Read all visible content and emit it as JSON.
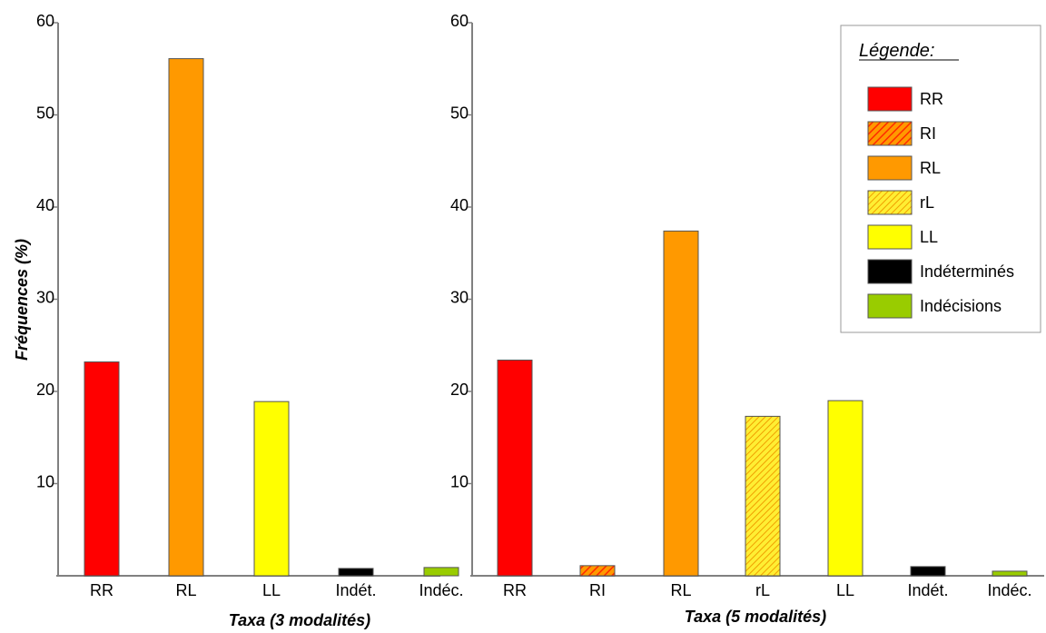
{
  "chart_data": [
    {
      "type": "bar",
      "categories": [
        "RR",
        "RL",
        "LL",
        "Indét.",
        "Indéc."
      ],
      "values": [
        23.2,
        56.1,
        18.9,
        0.8,
        0.9
      ],
      "fills": [
        "#ff0000",
        "#ff9900",
        "#ffff00",
        "#000000",
        "#99cc00"
      ],
      "patterns": [
        false,
        false,
        false,
        false,
        false
      ],
      "xlabel": "Taxa (3 modalités)",
      "ylabel": "Fréquences (%)",
      "ylim": [
        0,
        60
      ],
      "yticks": [
        10,
        20,
        30,
        40,
        50,
        60
      ],
      "grid": false
    },
    {
      "type": "bar",
      "categories": [
        "RR",
        "RI",
        "RL",
        "rL",
        "LL",
        "Indét.",
        "Indéc."
      ],
      "values": [
        23.4,
        1.1,
        37.4,
        17.3,
        19.0,
        1.0,
        0.5
      ],
      "fills": [
        "#ff0000",
        "#ff9900",
        "#ff9900",
        "#ffff00",
        "#ffff00",
        "#000000",
        "#99cc00"
      ],
      "patterns": [
        false,
        "hatch-red",
        false,
        "hatch-orange",
        false,
        false,
        false
      ],
      "xlabel": "Taxa (5 modalités)",
      "ylabel": "",
      "ylim": [
        0,
        60
      ],
      "yticks": [
        10,
        20,
        30,
        40,
        50,
        60
      ],
      "grid": false
    }
  ],
  "legend": {
    "title": "Légende:",
    "placement": "top-right",
    "items": [
      {
        "label": "RR",
        "fill": "#ff0000",
        "pattern": false
      },
      {
        "label": "RI",
        "fill": "#ff9900",
        "pattern": "hatch-red"
      },
      {
        "label": "RL",
        "fill": "#ff9900",
        "pattern": false
      },
      {
        "label": "rL",
        "fill": "#ffff00",
        "pattern": "hatch-orange"
      },
      {
        "label": "LL",
        "fill": "#ffff00",
        "pattern": false
      },
      {
        "label": "Indéterminés",
        "fill": "#000000",
        "pattern": false
      },
      {
        "label": "Indécisions",
        "fill": "#99cc00",
        "pattern": false
      }
    ]
  }
}
